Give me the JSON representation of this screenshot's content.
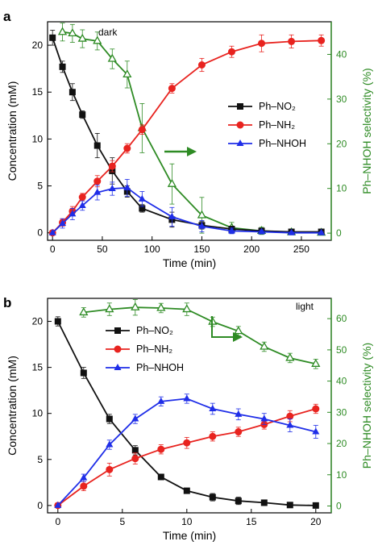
{
  "colors": {
    "nitro": "#111111",
    "amine": "#e8231f",
    "hydroxylamine": "#1f2ee8",
    "selectivity": "#2e8b24"
  },
  "chart_data": [
    {
      "type": "line",
      "panel": "a",
      "condition": "dark",
      "xlabel": "Time (min)",
      "ylabel": "Concentration (mM)",
      "y2label": "Ph–NHOH selectivity (%)",
      "xlim": [
        -5,
        280
      ],
      "ylim": [
        -0.8,
        22.5
      ],
      "y2lim": [
        -1.6,
        47.3
      ],
      "xticks": [
        0,
        50,
        100,
        150,
        200,
        250
      ],
      "yticks": [
        0,
        5,
        10,
        15,
        20
      ],
      "y2ticks": [
        0,
        10,
        20,
        30,
        40
      ],
      "legend_position": "right",
      "series": [
        {
          "name": "Ph–NO₂",
          "key": "nitro",
          "marker": "square",
          "axis": "left",
          "x": [
            0,
            10,
            20,
            30,
            45,
            60,
            75,
            90,
            120,
            150,
            180,
            210,
            240,
            270
          ],
          "y": [
            20.8,
            17.7,
            15.0,
            12.6,
            9.3,
            6.6,
            4.4,
            2.6,
            1.4,
            0.8,
            0.4,
            0.2,
            0.1,
            0.1
          ],
          "err": [
            0.8,
            0.6,
            0.9,
            0.4,
            1.3,
            1.4,
            0.6,
            0.4,
            0.8,
            0.4,
            0.2,
            0.2,
            0.2,
            0.2
          ]
        },
        {
          "name": "Ph–NH₂",
          "key": "amine",
          "marker": "circle",
          "axis": "left",
          "x": [
            0,
            10,
            20,
            30,
            45,
            60,
            75,
            90,
            120,
            150,
            180,
            210,
            240,
            270
          ],
          "y": [
            0,
            1.1,
            2.3,
            3.8,
            5.5,
            7.1,
            9.0,
            11.0,
            15.4,
            17.9,
            19.3,
            20.2,
            20.4,
            20.5
          ],
          "err": [
            0,
            0.4,
            0.5,
            0.4,
            0.6,
            0.6,
            0.5,
            0.5,
            0.5,
            0.7,
            0.6,
            0.9,
            0.7,
            0.6
          ]
        },
        {
          "name": "Ph–NHOH",
          "key": "hydroxylamine",
          "marker": "triangle",
          "axis": "left",
          "x": [
            0,
            10,
            20,
            30,
            45,
            60,
            75,
            90,
            120,
            150,
            180,
            210,
            240,
            270
          ],
          "y": [
            0,
            1.0,
            2.0,
            2.9,
            4.3,
            4.7,
            4.8,
            3.6,
            1.7,
            0.7,
            0.2,
            0.1,
            0.0,
            0.0
          ],
          "err": [
            0,
            0.5,
            0.6,
            0.5,
            0.8,
            0.7,
            0.9,
            0.8,
            1.0,
            0.6,
            0.3,
            0.2,
            0.1,
            0.1
          ]
        },
        {
          "name": "Ph–NHOH selectivity",
          "key": "selectivity",
          "marker": "triangle-open",
          "axis": "right",
          "x": [
            10,
            20,
            30,
            45,
            60,
            75,
            90,
            120,
            150,
            180,
            210,
            240,
            270
          ],
          "y": [
            45.0,
            44.7,
            43.5,
            43.0,
            39.0,
            35.5,
            23.5,
            11.0,
            4.0,
            1.2,
            0.5,
            0.2,
            0.1
          ],
          "err": [
            2.0,
            2.0,
            2.0,
            2.0,
            2.2,
            3.0,
            5.5,
            4.5,
            4.0,
            1.2,
            0.8,
            0.4,
            0.3
          ]
        }
      ]
    },
    {
      "type": "line",
      "panel": "b",
      "condition": "light",
      "xlabel": "Time (min)",
      "ylabel": "Concentration (mM)",
      "y2label": "Ph–NHOH selectivity (%)",
      "xlim": [
        -0.8,
        21.2
      ],
      "ylim": [
        -0.8,
        22.5
      ],
      "y2lim": [
        -2.2,
        66.5
      ],
      "xticks": [
        0,
        5,
        10,
        15,
        20
      ],
      "yticks": [
        0,
        5,
        10,
        15,
        20
      ],
      "y2ticks": [
        0,
        10,
        20,
        30,
        40,
        50,
        60
      ],
      "legend_position": "upper-center",
      "series": [
        {
          "name": "Ph–NO₂",
          "key": "nitro",
          "marker": "square",
          "axis": "left",
          "x": [
            0,
            2,
            4,
            6,
            8,
            10,
            12,
            14,
            16,
            18,
            20
          ],
          "y": [
            20.0,
            14.4,
            9.4,
            6.0,
            3.1,
            1.6,
            0.9,
            0.5,
            0.3,
            0.05,
            0.0
          ],
          "err": [
            0.5,
            0.6,
            0.5,
            0.5,
            0.3,
            0.2,
            0.4,
            0.4,
            0.3,
            0.1,
            0.1
          ]
        },
        {
          "name": "Ph–NH₂",
          "key": "amine",
          "marker": "circle",
          "axis": "left",
          "x": [
            0,
            2,
            4,
            6,
            8,
            10,
            12,
            14,
            16,
            18,
            20
          ],
          "y": [
            0,
            2.1,
            3.9,
            5.1,
            6.1,
            6.8,
            7.5,
            8.0,
            8.8,
            9.7,
            10.5
          ],
          "err": [
            0,
            0.5,
            0.7,
            0.6,
            0.5,
            0.6,
            0.5,
            0.5,
            0.5,
            0.6,
            0.5
          ]
        },
        {
          "name": "Ph–NHOH",
          "key": "hydroxylamine",
          "marker": "triangle",
          "axis": "left",
          "x": [
            0,
            2,
            4,
            6,
            8,
            10,
            12,
            14,
            16,
            18,
            20
          ],
          "y": [
            0,
            3.0,
            6.6,
            9.4,
            11.3,
            11.6,
            10.5,
            9.9,
            9.4,
            8.7,
            8.0
          ],
          "err": [
            0,
            0.4,
            0.5,
            0.5,
            0.5,
            0.5,
            0.6,
            0.6,
            0.6,
            0.7,
            0.7
          ]
        },
        {
          "name": "Ph–NHOH selectivity",
          "key": "selectivity",
          "marker": "triangle-open",
          "axis": "right",
          "x": [
            2,
            4,
            6,
            8,
            10,
            12,
            14,
            16,
            18,
            20
          ],
          "y": [
            62.0,
            63.0,
            63.6,
            63.4,
            63.0,
            59.0,
            56.0,
            51.0,
            47.4,
            45.5
          ],
          "err": [
            1.5,
            2.0,
            2.5,
            1.5,
            2.0,
            1.5,
            1.5,
            1.5,
            1.5,
            1.5
          ]
        }
      ]
    }
  ]
}
